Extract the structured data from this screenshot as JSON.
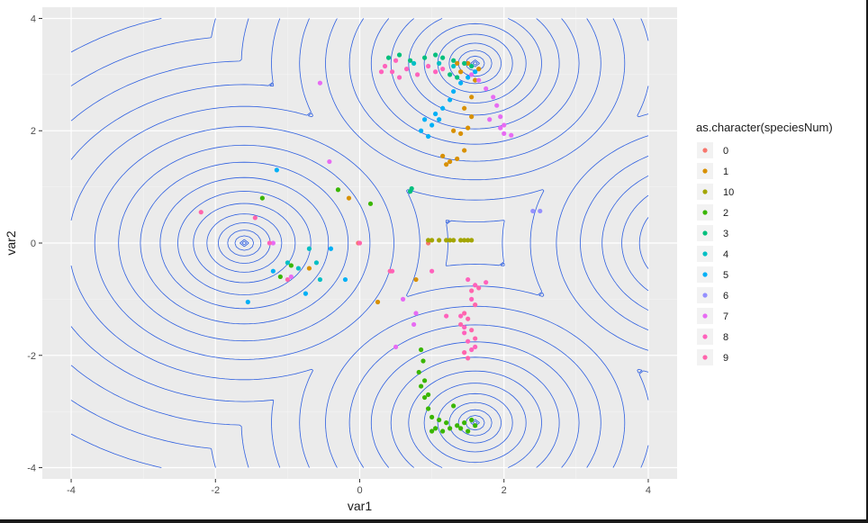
{
  "chart_data": {
    "type": "scatter",
    "overlay": "contour",
    "xlabel": "var1",
    "ylabel": "var2",
    "xlim": [
      -4.4,
      4.4
    ],
    "ylim": [
      -4.2,
      4.2
    ],
    "xticks": [
      -4,
      -2,
      0,
      2,
      4
    ],
    "yticks": [
      -4,
      -2,
      0,
      2,
      4
    ],
    "grid": true,
    "panel_background": "#EBEBEB",
    "contour_color": "#2E5FE0",
    "legend": {
      "title": "as.character(speciesNum)",
      "placement": "right"
    },
    "series": [
      {
        "name": "0",
        "color": "#F8766D",
        "points": [
          [
            -0.02,
            0.0
          ],
          [
            0.95,
            0.0
          ]
        ]
      },
      {
        "name": "1",
        "color": "#D89000",
        "points": [
          [
            1.15,
            1.55
          ],
          [
            1.25,
            1.45
          ],
          [
            1.35,
            1.5
          ],
          [
            1.45,
            1.65
          ],
          [
            1.3,
            2.0
          ],
          [
            1.4,
            1.95
          ],
          [
            1.5,
            2.05
          ],
          [
            1.45,
            2.4
          ],
          [
            1.55,
            2.6
          ],
          [
            1.6,
            2.9
          ],
          [
            1.65,
            3.1
          ],
          [
            1.5,
            3.2
          ],
          [
            1.4,
            3.05
          ],
          [
            1.35,
            3.2
          ],
          [
            0.25,
            -1.05
          ],
          [
            0.78,
            -0.65
          ],
          [
            -0.15,
            0.8
          ],
          [
            -0.7,
            -0.45
          ],
          [
            1.55,
            2.25
          ],
          [
            1.2,
            1.4
          ]
        ]
      },
      {
        "name": "10",
        "color": "#A3A500",
        "points": [
          [
            1.0,
            0.05
          ],
          [
            1.1,
            0.05
          ],
          [
            1.2,
            0.05
          ],
          [
            1.3,
            0.05
          ],
          [
            1.4,
            0.05
          ],
          [
            1.5,
            0.05
          ],
          [
            1.55,
            0.05
          ],
          [
            0.95,
            0.05
          ],
          [
            1.25,
            0.05
          ],
          [
            1.45,
            0.05
          ]
        ]
      },
      {
        "name": "2",
        "color": "#39B600",
        "points": [
          [
            0.85,
            -1.9
          ],
          [
            0.88,
            -2.1
          ],
          [
            0.82,
            -2.3
          ],
          [
            0.85,
            -2.55
          ],
          [
            0.9,
            -2.75
          ],
          [
            0.95,
            -2.95
          ],
          [
            1.0,
            -3.1
          ],
          [
            1.05,
            -3.3
          ],
          [
            1.15,
            -3.35
          ],
          [
            1.25,
            -3.3
          ],
          [
            1.35,
            -3.25
          ],
          [
            1.45,
            -3.2
          ],
          [
            1.55,
            -3.15
          ],
          [
            1.6,
            -3.25
          ],
          [
            1.4,
            -3.3
          ],
          [
            1.2,
            -3.2
          ],
          [
            1.3,
            -2.9
          ],
          [
            1.1,
            -3.15
          ],
          [
            0.95,
            -2.7
          ],
          [
            0.9,
            -2.45
          ],
          [
            -1.35,
            0.8
          ],
          [
            -0.95,
            -0.4
          ],
          [
            0.15,
            0.7
          ],
          [
            -0.3,
            0.95
          ],
          [
            -1.1,
            -0.6
          ],
          [
            1.0,
            -3.35
          ],
          [
            1.5,
            -3.35
          ]
        ]
      },
      {
        "name": "3",
        "color": "#00BF7D",
        "points": [
          [
            0.4,
            3.3
          ],
          [
            0.55,
            3.35
          ],
          [
            0.7,
            3.25
          ],
          [
            0.9,
            3.3
          ],
          [
            1.05,
            3.35
          ],
          [
            1.15,
            3.3
          ],
          [
            1.3,
            3.25
          ],
          [
            1.45,
            3.2
          ],
          [
            1.55,
            3.15
          ],
          [
            0.7,
            0.92
          ],
          [
            0.72,
            0.97
          ],
          [
            1.25,
            3.0
          ],
          [
            1.35,
            2.95
          ]
        ]
      },
      {
        "name": "4",
        "color": "#00BFC4",
        "points": [
          [
            -0.7,
            -0.1
          ],
          [
            -0.6,
            -0.35
          ],
          [
            -0.85,
            -0.45
          ],
          [
            -1.0,
            -0.35
          ],
          [
            -0.55,
            -0.65
          ],
          [
            1.3,
            3.15
          ],
          [
            1.1,
            3.2
          ],
          [
            0.75,
            3.2
          ]
        ]
      },
      {
        "name": "5",
        "color": "#00B0F6",
        "points": [
          [
            0.85,
            2.0
          ],
          [
            0.95,
            1.9
          ],
          [
            1.0,
            2.1
          ],
          [
            1.1,
            2.2
          ],
          [
            1.15,
            2.4
          ],
          [
            1.25,
            2.55
          ],
          [
            1.3,
            2.7
          ],
          [
            1.4,
            2.85
          ],
          [
            1.5,
            2.95
          ],
          [
            1.6,
            3.05
          ],
          [
            1.05,
            2.3
          ],
          [
            0.9,
            2.2
          ],
          [
            -1.2,
            -0.5
          ],
          [
            -0.75,
            -0.9
          ],
          [
            -0.4,
            -0.1
          ],
          [
            -0.2,
            -0.65
          ],
          [
            -1.55,
            -1.05
          ],
          [
            -1.15,
            1.3
          ]
        ]
      },
      {
        "name": "6",
        "color": "#9590FF",
        "points": [
          [
            2.4,
            0.57
          ],
          [
            2.5,
            0.57
          ]
        ]
      },
      {
        "name": "7",
        "color": "#E76BF3",
        "points": [
          [
            1.55,
            3.0
          ],
          [
            1.65,
            2.9
          ],
          [
            1.75,
            2.75
          ],
          [
            1.85,
            2.6
          ],
          [
            1.9,
            2.45
          ],
          [
            1.95,
            2.25
          ],
          [
            1.95,
            2.05
          ],
          [
            2.0,
            1.95
          ],
          [
            2.1,
            1.92
          ],
          [
            1.8,
            2.2
          ],
          [
            -0.55,
            2.85
          ],
          [
            -0.42,
            1.45
          ],
          [
            0.78,
            -1.25
          ],
          [
            0.75,
            -1.45
          ],
          [
            0.5,
            -1.85
          ],
          [
            -0.95,
            -0.6
          ],
          [
            -1.2,
            0.0
          ],
          [
            0.6,
            -1.0
          ],
          [
            2.0,
            2.1
          ]
        ]
      },
      {
        "name": "8",
        "color": "#FF62BC",
        "points": [
          [
            0.35,
            3.15
          ],
          [
            0.45,
            3.05
          ],
          [
            0.55,
            2.95
          ],
          [
            0.65,
            3.1
          ],
          [
            0.8,
            3.0
          ],
          [
            0.95,
            3.15
          ],
          [
            1.05,
            3.05
          ],
          [
            1.15,
            3.1
          ],
          [
            0.5,
            3.25
          ],
          [
            1.5,
            -0.65
          ],
          [
            1.6,
            -0.75
          ],
          [
            1.75,
            -0.7
          ],
          [
            1.55,
            -1.0
          ],
          [
            1.4,
            -1.3
          ],
          [
            1.45,
            -1.5
          ],
          [
            1.5,
            -1.75
          ],
          [
            1.55,
            -1.9
          ],
          [
            1.45,
            -1.6
          ],
          [
            1.6,
            -1.85
          ],
          [
            0.3,
            3.05
          ],
          [
            -1.25,
            0.0
          ],
          [
            0.45,
            -0.5
          ],
          [
            1.2,
            -1.3
          ],
          [
            1.0,
            -0.5
          ]
        ]
      },
      {
        "name": "9",
        "color": "#FF65AC",
        "points": [
          [
            1.55,
            -0.85
          ],
          [
            1.6,
            -1.1
          ],
          [
            1.5,
            -1.35
          ],
          [
            1.55,
            -1.55
          ],
          [
            1.6,
            -1.7
          ],
          [
            1.45,
            -1.95
          ],
          [
            1.5,
            -2.05
          ],
          [
            1.65,
            -0.8
          ],
          [
            1.45,
            -1.25
          ],
          [
            -2.2,
            0.55
          ],
          [
            -1.45,
            0.45
          ],
          [
            0.0,
            0.0
          ],
          [
            0.42,
            -0.5
          ],
          [
            -1.0,
            -0.65
          ],
          [
            1.4,
            -1.45
          ]
        ]
      }
    ]
  }
}
